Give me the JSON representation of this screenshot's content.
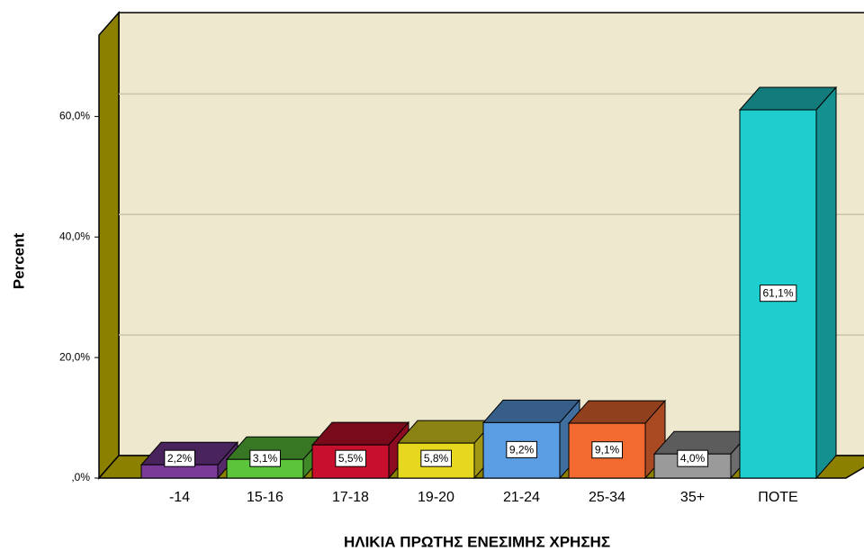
{
  "chart_data": {
    "type": "bar3d",
    "categories": [
      "-14",
      "15-16",
      "17-18",
      "19-20",
      "21-24",
      "25-34",
      "35+",
      "ΠΟΤΕ"
    ],
    "values": [
      2.2,
      3.1,
      5.5,
      5.8,
      9.2,
      9.1,
      4.0,
      61.1
    ],
    "value_labels": [
      "2,2%",
      "3,1%",
      "5,5%",
      "5,8%",
      "9,2%",
      "9,1%",
      "4,0%",
      "61,1%"
    ],
    "colors": [
      "#7a3a98",
      "#5cc43a",
      "#c8102e",
      "#e6d81e",
      "#5a9de3",
      "#f26a30",
      "#9a9a9a",
      "#1ecdcd"
    ],
    "x_label": "ΗΛΙΚΙΑ ΠΡΩΤΗΣ ΕΝΕΣΙΜΗΣ ΧΡΗΣΗΣ",
    "y_label": "Percent",
    "ylim": [
      0,
      73.5
    ],
    "yticks": [
      {
        "value": 0,
        "label": ",0%"
      },
      {
        "value": 20,
        "label": "20,0%"
      },
      {
        "value": 40,
        "label": "40,0%"
      },
      {
        "value": 60,
        "label": "60,0%"
      }
    ],
    "grid": true
  }
}
